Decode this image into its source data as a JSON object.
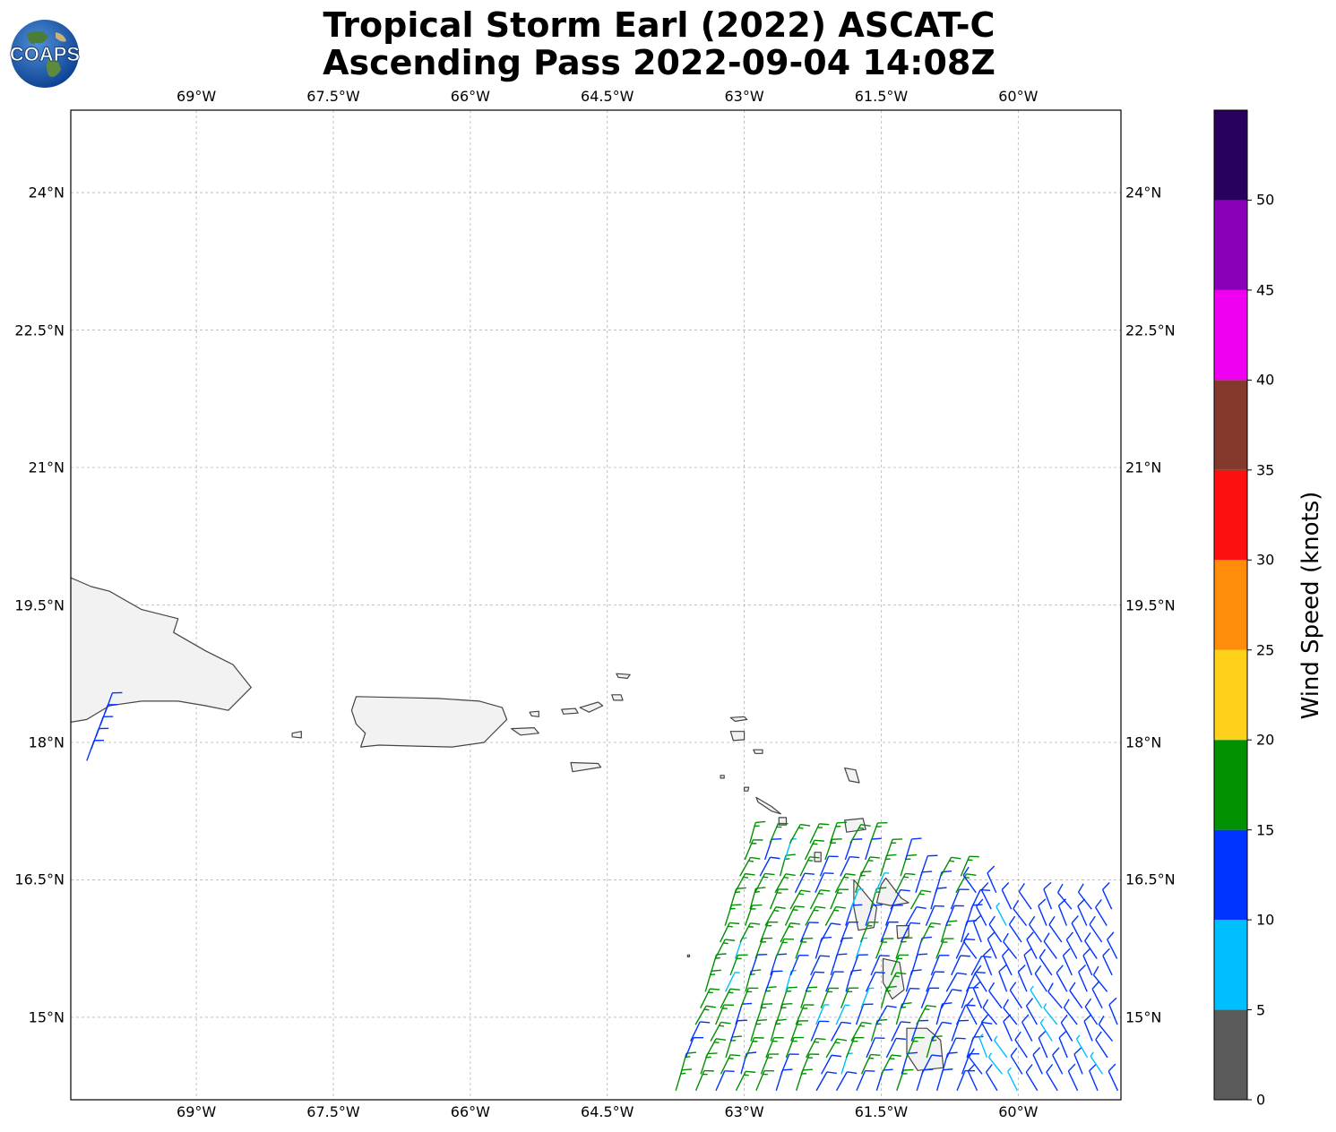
{
  "title": {
    "line1": "Tropical Storm Earl (2022) ASCAT-C",
    "line2": "Ascending Pass 2022-09-04 14:08Z"
  },
  "logo": {
    "text": "COAPS",
    "icon": "globe-icon"
  },
  "map": {
    "lon_range": [
      -70.375,
      -58.875
    ],
    "lat_range": [
      14.1,
      24.9
    ],
    "x_ticks": [
      "69°W",
      "67.5°W",
      "66°W",
      "64.5°W",
      "63°W",
      "61.5°W",
      "60°W"
    ],
    "x_tick_values": [
      -69,
      -67.5,
      -66,
      -64.5,
      -63,
      -61.5,
      -60
    ],
    "y_ticks": [
      "24°N",
      "22.5°N",
      "21°N",
      "19.5°N",
      "18°N",
      "16.5°N",
      "15°N"
    ],
    "y_tick_values": [
      24,
      22.5,
      21,
      19.5,
      18,
      16.5,
      15
    ],
    "grid": true,
    "land_color": "#f2f2f2",
    "coast_color": "#444444"
  },
  "colorbar": {
    "label": "Wind Speed (knots)",
    "ticks": [
      "0",
      "5",
      "10",
      "15",
      "20",
      "25",
      "30",
      "35",
      "40",
      "45",
      "50"
    ],
    "bins": [
      {
        "min": 0,
        "max": 5,
        "color": "#5a5a5a"
      },
      {
        "min": 5,
        "max": 10,
        "color": "#00bfff"
      },
      {
        "min": 10,
        "max": 15,
        "color": "#0033ff"
      },
      {
        "min": 15,
        "max": 20,
        "color": "#009000"
      },
      {
        "min": 20,
        "max": 25,
        "color": "#ffd11a"
      },
      {
        "min": 25,
        "max": 30,
        "color": "#ff8c0a"
      },
      {
        "min": 30,
        "max": 35,
        "color": "#ff1010"
      },
      {
        "min": 35,
        "max": 40,
        "color": "#833a2c"
      },
      {
        "min": 40,
        "max": 45,
        "color": "#f000f0"
      },
      {
        "min": 45,
        "max": 50,
        "color": "#8800b8"
      },
      {
        "min": 50,
        "max": 55,
        "color": "#2a005e"
      }
    ]
  },
  "wind_swath": {
    "description_units": "lon/lat in degrees, speed in knots",
    "west_strip": {
      "lon": -70.2,
      "lat_range": [
        17.8,
        18.4
      ],
      "speed": 12
    },
    "main_swath": {
      "lon_range": [
        -63.75,
        -58.9
      ],
      "lat_range": [
        14.2,
        16.9
      ]
    }
  }
}
